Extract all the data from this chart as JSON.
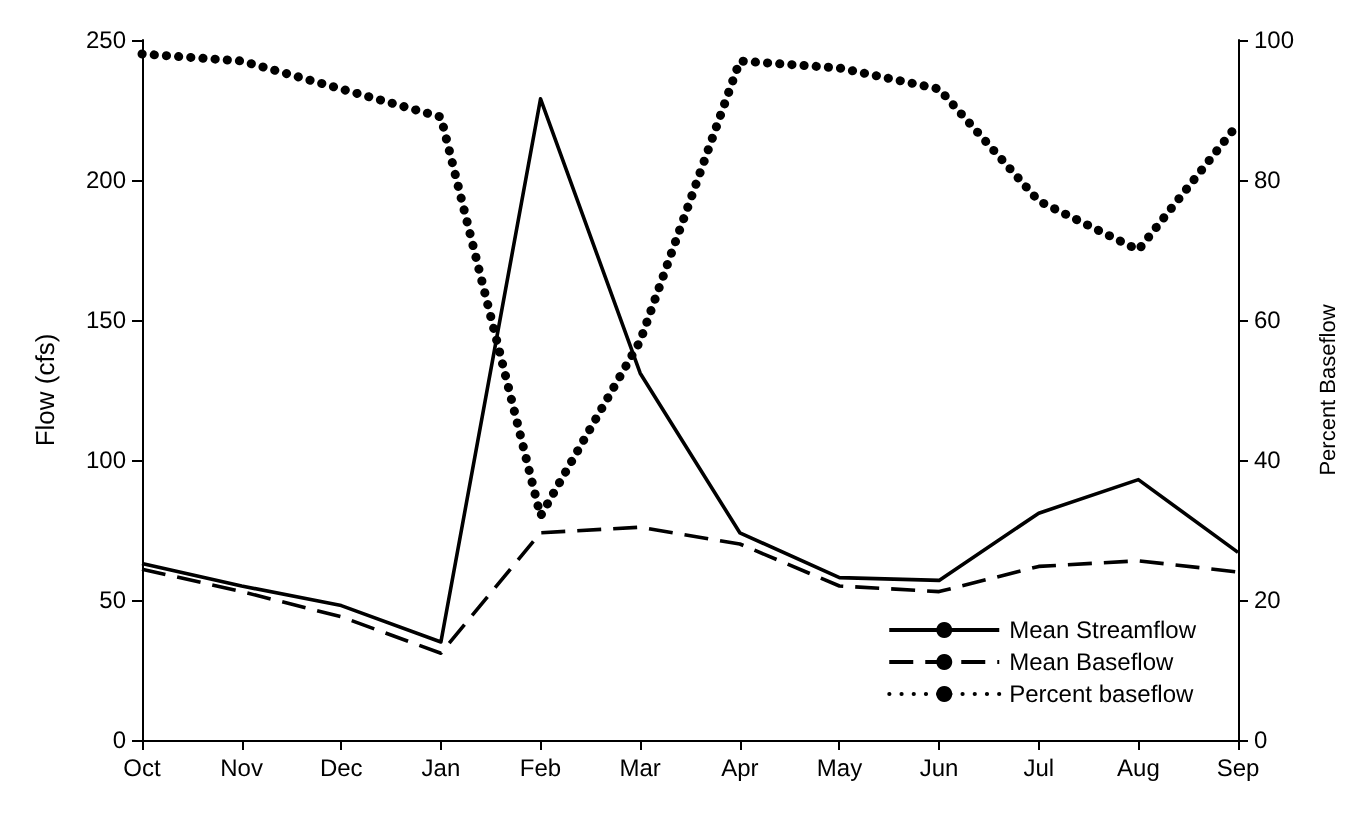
{
  "chart_data": {
    "type": "line",
    "ylabel": "Flow (cfs)",
    "y2label": "Percent Baseflow",
    "categories": [
      "Oct",
      "Nov",
      "Dec",
      "Jan",
      "Feb",
      "Mar",
      "Apr",
      "May",
      "Jun",
      "Jul",
      "Aug",
      "Sep"
    ],
    "series": [
      {
        "name": "Mean Streamflow",
        "color": "#000000",
        "line_style": "solid",
        "values": [
          63,
          55,
          48,
          35,
          229,
          131,
          74,
          58,
          57,
          81,
          93,
          67
        ]
      },
      {
        "name": "Mean Baseflow",
        "color": "#000000",
        "line_style": "dashed",
        "values": [
          61,
          53,
          44,
          31,
          74,
          76,
          70,
          55,
          53,
          62,
          64,
          60
        ]
      },
      {
        "name": "Percent baseflow",
        "color": "#000000",
        "line_style": "dotted",
        "axis": "y2",
        "values": [
          98,
          97,
          93,
          89,
          32,
          57,
          97,
          96,
          93,
          77,
          70,
          88
        ]
      }
    ],
    "ylim": [
      0,
      250
    ],
    "yticks": [
      0,
      50,
      100,
      150,
      200,
      250
    ],
    "y2lim": [
      0,
      100
    ],
    "y2ticks": [
      0,
      20,
      40,
      60,
      80,
      100
    ],
    "grid": false,
    "legend": "bottom right",
    "marker": "none"
  }
}
